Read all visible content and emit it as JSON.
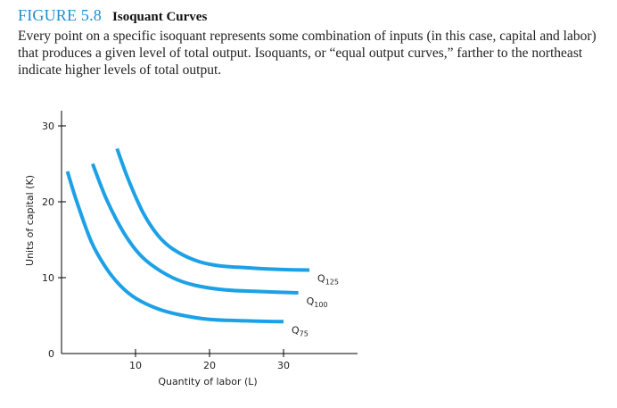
{
  "figure": {
    "label": "FIGURE 5.8",
    "title": "Isoquant Curves",
    "caption": "Every point on a specific isoquant represents some combination of inputs (in this case, capital and labor) that produces a given level of total output. Isoquants, or “equal output curves,” farther to the northeast indicate higher levels of total output."
  },
  "chart_data": {
    "type": "line",
    "xlabel": "Quantity of labor (L)",
    "ylabel": "Units of capital (K)",
    "xlim": [
      0,
      40
    ],
    "ylim": [
      0,
      32
    ],
    "x_ticks": [
      10,
      20,
      30
    ],
    "y_ticks": [
      0,
      10,
      20,
      30
    ],
    "x_tick_labels": [
      "10",
      "20",
      "30"
    ],
    "y_tick_labels": [
      "0",
      "10",
      "20",
      "30"
    ],
    "grid": false,
    "line_color": "#1da1e6",
    "axis_color": "#000000",
    "series": [
      {
        "name": "Q75",
        "label_main": "Q",
        "label_sub": "75",
        "x": [
          0.8,
          2,
          4,
          6,
          8,
          10,
          13,
          16,
          20,
          25,
          30
        ],
        "y": [
          24,
          20.2,
          14.8,
          11.3,
          8.9,
          7.3,
          5.9,
          5.1,
          4.5,
          4.3,
          4.2
        ]
      },
      {
        "name": "Q100",
        "label_main": "Q",
        "label_sub": "100",
        "x": [
          4.2,
          6,
          8,
          10,
          12,
          15,
          18,
          22,
          26,
          32
        ],
        "y": [
          25,
          20.5,
          16.6,
          13.7,
          11.8,
          10.0,
          9.0,
          8.4,
          8.2,
          8.0
        ]
      },
      {
        "name": "Q125",
        "label_main": "Q",
        "label_sub": "125",
        "x": [
          7.5,
          9,
          11,
          13,
          15,
          18,
          21,
          25,
          29,
          33.5
        ],
        "y": [
          27,
          23.0,
          18.6,
          15.6,
          13.8,
          12.3,
          11.6,
          11.3,
          11.1,
          11.0
        ]
      }
    ]
  }
}
